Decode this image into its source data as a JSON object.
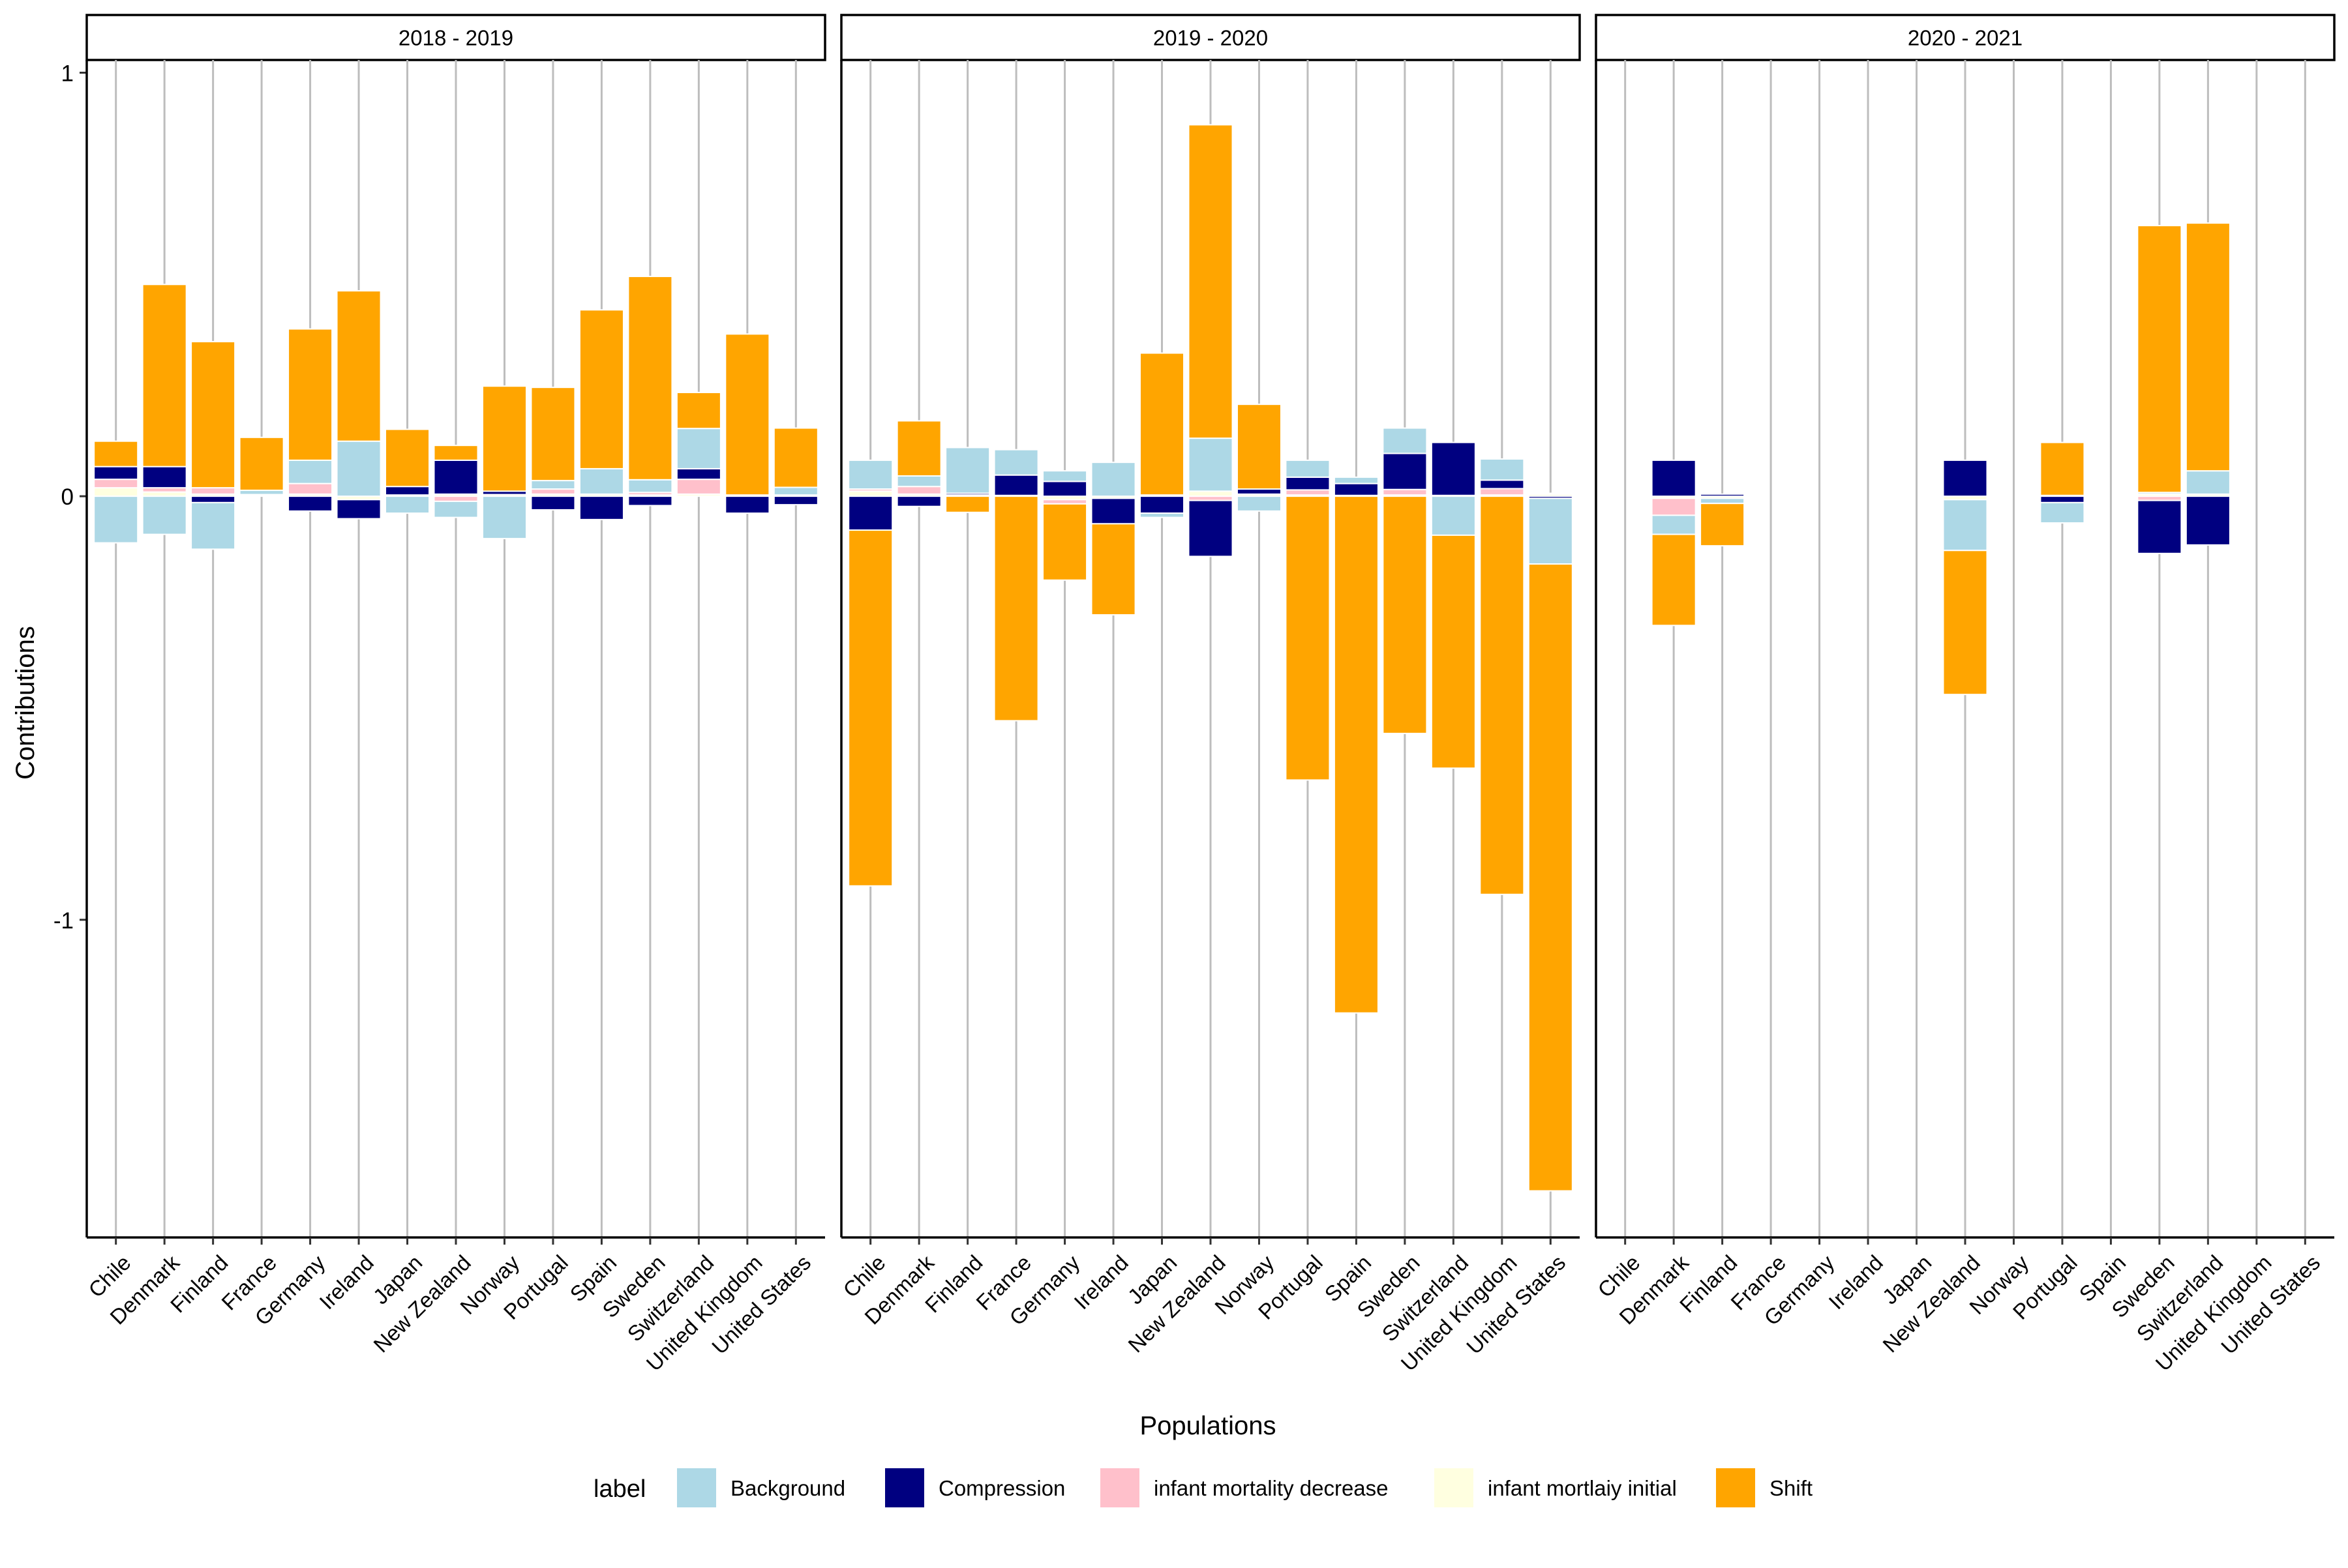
{
  "chart_data": {
    "type": "bar",
    "stacked": true,
    "xlabel": "Populations",
    "ylabel": "Contributions",
    "ylim": [
      -1.75,
      1.03
    ],
    "y_ticks": [
      {
        "value": -1,
        "label": "-1"
      },
      {
        "value": 0,
        "label": "0"
      },
      {
        "value": 1,
        "label": "1"
      }
    ],
    "grid": "vertical-major",
    "categories": [
      "Chile",
      "Denmark",
      "Finland",
      "France",
      "Germany",
      "Ireland",
      "Japan",
      "New Zealand",
      "Norway",
      "Portugal",
      "Spain",
      "Sweden",
      "Switzerland",
      "United Kingdom",
      "United States"
    ],
    "legend": {
      "position": "bottom",
      "title": "label",
      "entries": [
        {
          "key": "background",
          "label": "Background",
          "color": "#ADD8E6"
        },
        {
          "key": "compression",
          "label": "Compression",
          "color": "#000080"
        },
        {
          "key": "imd",
          "label": "infant mortality decrease",
          "color": "#FFC0CB"
        },
        {
          "key": "imi",
          "label": "infant mortlaiy initial",
          "color": "#FFFFE0"
        },
        {
          "key": "shift",
          "label": "Shift",
          "color": "#FFA500"
        }
      ]
    },
    "stack_order": [
      "imi",
      "imd",
      "compression",
      "background",
      "shift"
    ],
    "panels": [
      {
        "title": "2018 - 2019",
        "bars": [
          {
            "background": -0.11,
            "compression": 0.03,
            "imd": 0.02,
            "imi": 0.02,
            "shift": 0.06
          },
          {
            "background": -0.09,
            "compression": 0.05,
            "imd": 0.01,
            "imi": 0.01,
            "shift": 0.43
          },
          {
            "background": -0.11,
            "compression": -0.015,
            "imd": 0.015,
            "imi": 0.005,
            "shift": 0.345
          },
          {
            "background": 0.01,
            "compression": 0.002,
            "imd": 0,
            "imi": 0.002,
            "shift": 0.125
          },
          {
            "background": 0.055,
            "compression": -0.035,
            "imd": 0.025,
            "imi": 0.005,
            "shift": 0.31
          },
          {
            "background": 0.13,
            "compression": -0.045,
            "imd": 0,
            "imi": -0.008,
            "shift": 0.355
          },
          {
            "background": -0.04,
            "compression": 0.02,
            "imd": 0,
            "imi": 0.003,
            "shift": 0.135
          },
          {
            "background": -0.038,
            "compression": 0.08,
            "imd": -0.012,
            "imi": 0.005,
            "shift": 0.035
          },
          {
            "background": -0.1,
            "compression": 0.008,
            "imd": 0,
            "imi": 0.004,
            "shift": 0.248
          },
          {
            "background": 0.02,
            "compression": -0.032,
            "imd": 0.012,
            "imi": 0.005,
            "shift": 0.22
          },
          {
            "background": 0.06,
            "compression": -0.055,
            "imd": 0,
            "imi": 0.005,
            "shift": 0.375
          },
          {
            "background": 0.03,
            "compression": -0.022,
            "imd": 0.006,
            "imi": 0.003,
            "shift": 0.48
          },
          {
            "background": 0.095,
            "compression": 0.025,
            "imd": 0.035,
            "imi": 0.005,
            "shift": 0.085
          },
          {
            "background": 0,
            "compression": -0.04,
            "imd": 0,
            "imi": 0.003,
            "shift": 0.38
          },
          {
            "background": 0.018,
            "compression": -0.02,
            "imd": 0,
            "imi": 0.003,
            "shift": 0.14
          }
        ]
      },
      {
        "title": "2019 - 2020",
        "bars": [
          {
            "background": 0.068,
            "compression": -0.08,
            "imd": 0.005,
            "imi": 0.012,
            "shift": -0.84
          },
          {
            "background": 0.025,
            "compression": -0.024,
            "imd": 0.018,
            "imi": 0.005,
            "shift": 0.13
          },
          {
            "background": 0.108,
            "compression": 0.004,
            "imd": 0,
            "imi": 0.003,
            "shift": -0.038
          },
          {
            "background": 0.06,
            "compression": 0.048,
            "imd": 0,
            "imi": 0.002,
            "shift": -0.53
          },
          {
            "background": 0.025,
            "compression": 0.035,
            "imd": -0.01,
            "imi": -0.008,
            "shift": -0.18
          },
          {
            "background": 0.08,
            "compression": -0.06,
            "imd": 0,
            "imi": -0.005,
            "shift": -0.215
          },
          {
            "background": -0.01,
            "compression": -0.04,
            "imd": 0,
            "imi": 0.003,
            "shift": 0.335
          },
          {
            "background": 0.125,
            "compression": -0.132,
            "imd": -0.01,
            "imi": 0.012,
            "shift": 0.74
          },
          {
            "background": -0.035,
            "compression": 0.012,
            "imd": 0,
            "imi": 0.005,
            "shift": 0.2
          },
          {
            "background": 0.04,
            "compression": 0.03,
            "imd": 0.012,
            "imi": 0.003,
            "shift": -0.67
          },
          {
            "background": 0.015,
            "compression": 0.028,
            "imd": 0,
            "imi": 0.002,
            "shift": -1.22
          },
          {
            "background": 0.06,
            "compression": 0.085,
            "imd": 0.013,
            "imi": 0.003,
            "shift": -0.56
          },
          {
            "background": -0.092,
            "compression": 0.125,
            "imd": 0,
            "imi": 0.002,
            "shift": -0.55
          },
          {
            "background": 0.05,
            "compression": 0.02,
            "imd": 0.015,
            "imi": 0.003,
            "shift": -0.94
          },
          {
            "background": -0.155,
            "compression": -0.005,
            "imd": 0.002,
            "imi": 0.005,
            "shift": -1.48
          }
        ]
      },
      {
        "title": "2020 - 2021",
        "bars": [
          {
            "background": 0,
            "compression": 0,
            "imd": 0,
            "imi": 0,
            "shift": 0
          },
          {
            "background": -0.045,
            "compression": 0.085,
            "imd": -0.04,
            "imi": -0.005,
            "shift": -0.215
          },
          {
            "background": -0.012,
            "compression": 0.005,
            "imd": 0,
            "imi": -0.005,
            "shift": -0.1
          },
          {
            "background": 0,
            "compression": 0,
            "imd": 0,
            "imi": 0,
            "shift": 0
          },
          {
            "background": 0,
            "compression": 0,
            "imd": 0,
            "imi": 0,
            "shift": 0
          },
          {
            "background": 0,
            "compression": 0,
            "imd": 0,
            "imi": 0,
            "shift": 0
          },
          {
            "background": 0,
            "compression": 0,
            "imd": 0,
            "imi": 0,
            "shift": 0
          },
          {
            "background": -0.12,
            "compression": 0.085,
            "imd": 0,
            "imi": -0.008,
            "shift": -0.34
          },
          {
            "background": 0,
            "compression": 0,
            "imd": 0,
            "imi": 0,
            "shift": 0
          },
          {
            "background": -0.048,
            "compression": -0.015,
            "imd": 0,
            "imi": 0.002,
            "shift": 0.125
          },
          {
            "background": 0,
            "compression": 0,
            "imd": 0,
            "imi": 0,
            "shift": 0
          },
          {
            "background": 0.004,
            "compression": -0.125,
            "imd": -0.01,
            "imi": 0.005,
            "shift": 0.63
          },
          {
            "background": 0.055,
            "compression": -0.115,
            "imd": 0,
            "imi": 0.005,
            "shift": 0.585
          },
          {
            "background": 0,
            "compression": 0,
            "imd": 0,
            "imi": 0,
            "shift": 0
          },
          {
            "background": 0,
            "compression": 0,
            "imd": 0,
            "imi": 0,
            "shift": 0
          }
        ]
      }
    ]
  }
}
